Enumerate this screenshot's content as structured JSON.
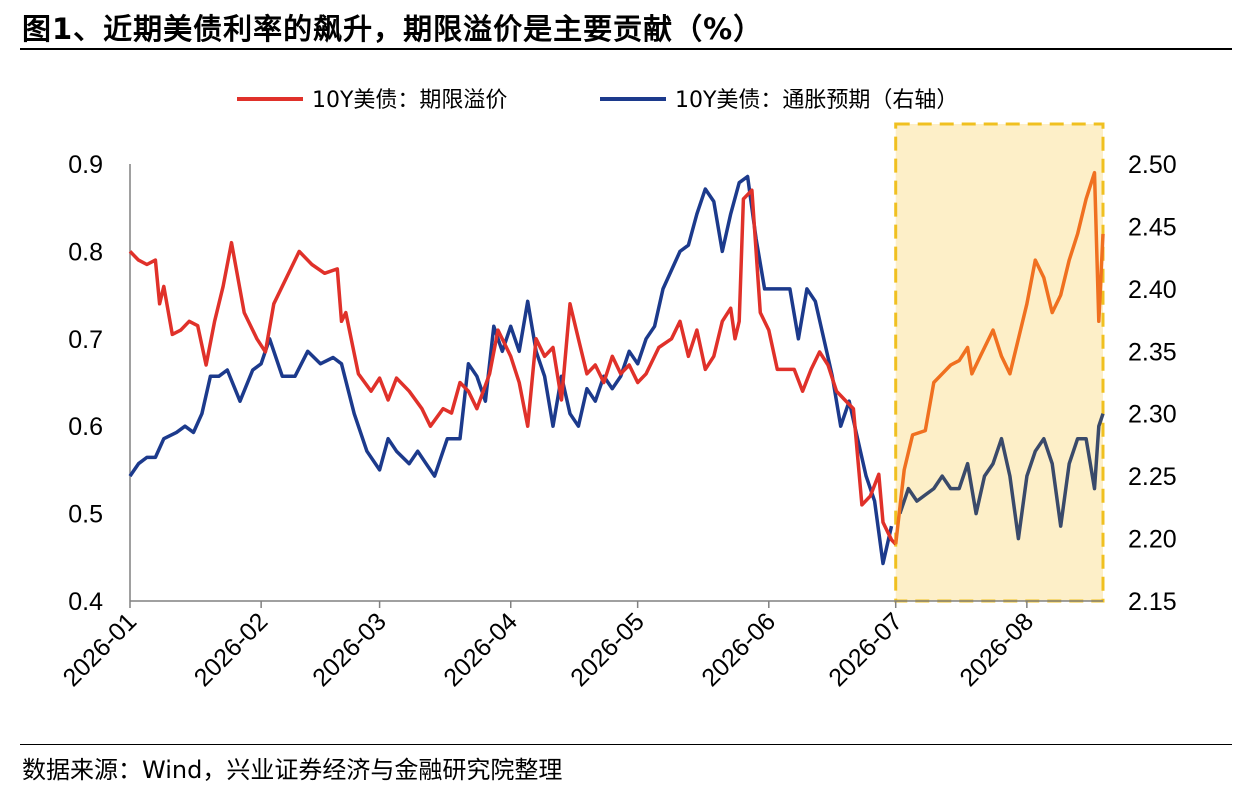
{
  "title": "图1、近期美债利率的飙升，期限溢价是主要贡献（%）",
  "source": "数据来源：Wind，兴业证券经济与金融研究院整理",
  "colors": {
    "series_left": "#e0312a",
    "series_right": "#1c3a8c",
    "series_right_highlight": "#3a4a6a",
    "series_left_highlight": "#f07020",
    "highlight_fill": "#fdefc8",
    "highlight_border": "#f0c020"
  },
  "chart_data": {
    "type": "line",
    "title": "图1、近期美债利率的飙升，期限溢价是主要贡献（%）",
    "x_labels": [
      "2026-01",
      "2026-02",
      "2026-03",
      "2026-04",
      "2026-05",
      "2026-06",
      "2026-07",
      "2026-08"
    ],
    "y_left": {
      "min": 0.4,
      "max": 0.9,
      "ticks": [
        "0.9",
        "0.8",
        "0.7",
        "0.6",
        "0.5",
        "0.4"
      ]
    },
    "y_right": {
      "min": 2.15,
      "max": 2.5,
      "ticks": [
        "2.50",
        "2.45",
        "2.40",
        "2.35",
        "2.30",
        "2.25",
        "2.20",
        "2.15"
      ]
    },
    "highlight_period": {
      "start": "2026-07-01",
      "end": "2026-08-19"
    },
    "legend_position": "top",
    "series": [
      {
        "name": "10Y美债：期限溢价",
        "axis": "left",
        "points": [
          [
            "2026-01-01",
            0.8
          ],
          [
            "2026-01-03",
            0.79
          ],
          [
            "2026-01-05",
            0.785
          ],
          [
            "2026-01-07",
            0.79
          ],
          [
            "2026-01-08",
            0.74
          ],
          [
            "2026-01-09",
            0.76
          ],
          [
            "2026-01-11",
            0.705
          ],
          [
            "2026-01-13",
            0.71
          ],
          [
            "2026-01-15",
            0.72
          ],
          [
            "2026-01-17",
            0.715
          ],
          [
            "2026-01-19",
            0.67
          ],
          [
            "2026-01-21",
            0.72
          ],
          [
            "2026-01-23",
            0.76
          ],
          [
            "2026-01-25",
            0.81
          ],
          [
            "2026-01-28",
            0.73
          ],
          [
            "2026-01-31",
            0.7
          ],
          [
            "2026-02-02",
            0.685
          ],
          [
            "2026-02-04",
            0.74
          ],
          [
            "2026-02-07",
            0.77
          ],
          [
            "2026-02-10",
            0.8
          ],
          [
            "2026-02-13",
            0.785
          ],
          [
            "2026-02-16",
            0.775
          ],
          [
            "2026-02-19",
            0.78
          ],
          [
            "2026-02-20",
            0.72
          ],
          [
            "2026-02-21",
            0.73
          ],
          [
            "2026-02-24",
            0.66
          ],
          [
            "2026-02-27",
            0.64
          ],
          [
            "2026-03-01",
            0.655
          ],
          [
            "2026-03-03",
            0.63
          ],
          [
            "2026-03-05",
            0.655
          ],
          [
            "2026-03-08",
            0.64
          ],
          [
            "2026-03-11",
            0.62
          ],
          [
            "2026-03-13",
            0.6
          ],
          [
            "2026-03-16",
            0.62
          ],
          [
            "2026-03-18",
            0.615
          ],
          [
            "2026-03-20",
            0.65
          ],
          [
            "2026-03-22",
            0.64
          ],
          [
            "2026-03-24",
            0.62
          ],
          [
            "2026-03-27",
            0.66
          ],
          [
            "2026-03-29",
            0.71
          ],
          [
            "2026-04-01",
            0.68
          ],
          [
            "2026-04-03",
            0.65
          ],
          [
            "2026-04-05",
            0.6
          ],
          [
            "2026-04-07",
            0.7
          ],
          [
            "2026-04-09",
            0.68
          ],
          [
            "2026-04-11",
            0.69
          ],
          [
            "2026-04-13",
            0.63
          ],
          [
            "2026-04-15",
            0.74
          ],
          [
            "2026-04-17",
            0.7
          ],
          [
            "2026-04-19",
            0.66
          ],
          [
            "2026-04-21",
            0.67
          ],
          [
            "2026-04-23",
            0.65
          ],
          [
            "2026-04-25",
            0.68
          ],
          [
            "2026-04-27",
            0.66
          ],
          [
            "2026-04-29",
            0.67
          ],
          [
            "2026-05-01",
            0.65
          ],
          [
            "2026-05-03",
            0.66
          ],
          [
            "2026-05-06",
            0.69
          ],
          [
            "2026-05-09",
            0.7
          ],
          [
            "2026-05-11",
            0.72
          ],
          [
            "2026-05-13",
            0.68
          ],
          [
            "2026-05-15",
            0.71
          ],
          [
            "2026-05-17",
            0.665
          ],
          [
            "2026-05-19",
            0.68
          ],
          [
            "2026-05-21",
            0.72
          ],
          [
            "2026-05-23",
            0.735
          ],
          [
            "2026-05-24",
            0.7
          ],
          [
            "2026-05-25",
            0.72
          ],
          [
            "2026-05-26",
            0.86
          ],
          [
            "2026-05-28",
            0.87
          ],
          [
            "2026-05-30",
            0.73
          ],
          [
            "2026-06-01",
            0.71
          ],
          [
            "2026-06-03",
            0.665
          ],
          [
            "2026-06-05",
            0.665
          ],
          [
            "2026-06-07",
            0.665
          ],
          [
            "2026-06-09",
            0.64
          ],
          [
            "2026-06-11",
            0.665
          ],
          [
            "2026-06-13",
            0.685
          ],
          [
            "2026-06-15",
            0.67
          ],
          [
            "2026-06-17",
            0.64
          ],
          [
            "2026-06-19",
            0.63
          ],
          [
            "2026-06-21",
            0.62
          ],
          [
            "2026-06-23",
            0.51
          ],
          [
            "2026-06-25",
            0.52
          ],
          [
            "2026-06-27",
            0.545
          ],
          [
            "2026-06-28",
            0.49
          ],
          [
            "2026-06-30",
            0.47
          ],
          [
            "2026-07-01",
            0.465
          ],
          [
            "2026-07-03",
            0.55
          ],
          [
            "2026-07-05",
            0.59
          ],
          [
            "2026-07-08",
            0.595
          ],
          [
            "2026-07-10",
            0.65
          ],
          [
            "2026-07-12",
            0.66
          ],
          [
            "2026-07-14",
            0.67
          ],
          [
            "2026-07-16",
            0.675
          ],
          [
            "2026-07-18",
            0.69
          ],
          [
            "2026-07-19",
            0.66
          ],
          [
            "2026-07-21",
            0.68
          ],
          [
            "2026-07-24",
            0.71
          ],
          [
            "2026-07-26",
            0.68
          ],
          [
            "2026-07-28",
            0.66
          ],
          [
            "2026-07-30",
            0.7
          ],
          [
            "2026-08-01",
            0.74
          ],
          [
            "2026-08-03",
            0.79
          ],
          [
            "2026-08-05",
            0.77
          ],
          [
            "2026-08-07",
            0.73
          ],
          [
            "2026-08-09",
            0.75
          ],
          [
            "2026-08-11",
            0.79
          ],
          [
            "2026-08-13",
            0.82
          ],
          [
            "2026-08-15",
            0.86
          ],
          [
            "2026-08-17",
            0.89
          ],
          [
            "2026-08-18",
            0.72
          ],
          [
            "2026-08-19",
            0.82
          ]
        ]
      },
      {
        "name": "10Y美债：通胀预期（右轴）",
        "axis": "right",
        "points": [
          [
            "2026-01-01",
            2.25
          ],
          [
            "2026-01-03",
            2.26
          ],
          [
            "2026-01-05",
            2.265
          ],
          [
            "2026-01-07",
            2.265
          ],
          [
            "2026-01-09",
            2.28
          ],
          [
            "2026-01-12",
            2.285
          ],
          [
            "2026-01-14",
            2.29
          ],
          [
            "2026-01-16",
            2.285
          ],
          [
            "2026-01-18",
            2.3
          ],
          [
            "2026-01-20",
            2.33
          ],
          [
            "2026-01-22",
            2.33
          ],
          [
            "2026-01-24",
            2.335
          ],
          [
            "2026-01-27",
            2.31
          ],
          [
            "2026-01-30",
            2.335
          ],
          [
            "2026-02-01",
            2.34
          ],
          [
            "2026-02-03",
            2.36
          ],
          [
            "2026-02-06",
            2.33
          ],
          [
            "2026-02-09",
            2.33
          ],
          [
            "2026-02-12",
            2.35
          ],
          [
            "2026-02-15",
            2.34
          ],
          [
            "2026-02-18",
            2.345
          ],
          [
            "2026-02-20",
            2.34
          ],
          [
            "2026-02-23",
            2.3
          ],
          [
            "2026-02-26",
            2.27
          ],
          [
            "2026-03-01",
            2.255
          ],
          [
            "2026-03-03",
            2.28
          ],
          [
            "2026-03-05",
            2.27
          ],
          [
            "2026-03-08",
            2.26
          ],
          [
            "2026-03-10",
            2.27
          ],
          [
            "2026-03-12",
            2.26
          ],
          [
            "2026-03-14",
            2.25
          ],
          [
            "2026-03-17",
            2.28
          ],
          [
            "2026-03-20",
            2.28
          ],
          [
            "2026-03-22",
            2.34
          ],
          [
            "2026-03-24",
            2.33
          ],
          [
            "2026-03-26",
            2.31
          ],
          [
            "2026-03-28",
            2.37
          ],
          [
            "2026-03-30",
            2.35
          ],
          [
            "2026-04-01",
            2.37
          ],
          [
            "2026-04-03",
            2.35
          ],
          [
            "2026-04-05",
            2.39
          ],
          [
            "2026-04-07",
            2.35
          ],
          [
            "2026-04-09",
            2.33
          ],
          [
            "2026-04-11",
            2.29
          ],
          [
            "2026-04-13",
            2.33
          ],
          [
            "2026-04-15",
            2.3
          ],
          [
            "2026-04-17",
            2.29
          ],
          [
            "2026-04-19",
            2.32
          ],
          [
            "2026-04-21",
            2.31
          ],
          [
            "2026-04-23",
            2.33
          ],
          [
            "2026-04-25",
            2.32
          ],
          [
            "2026-04-27",
            2.33
          ],
          [
            "2026-04-29",
            2.35
          ],
          [
            "2026-05-01",
            2.34
          ],
          [
            "2026-05-03",
            2.36
          ],
          [
            "2026-05-05",
            2.37
          ],
          [
            "2026-05-07",
            2.4
          ],
          [
            "2026-05-09",
            2.415
          ],
          [
            "2026-05-11",
            2.43
          ],
          [
            "2026-05-13",
            2.435
          ],
          [
            "2026-05-15",
            2.46
          ],
          [
            "2026-05-17",
            2.48
          ],
          [
            "2026-05-19",
            2.47
          ],
          [
            "2026-05-21",
            2.43
          ],
          [
            "2026-05-23",
            2.46
          ],
          [
            "2026-05-25",
            2.485
          ],
          [
            "2026-05-27",
            2.49
          ],
          [
            "2026-05-29",
            2.44
          ],
          [
            "2026-05-31",
            2.4
          ],
          [
            "2026-06-02",
            2.4
          ],
          [
            "2026-06-04",
            2.4
          ],
          [
            "2026-06-06",
            2.4
          ],
          [
            "2026-06-08",
            2.36
          ],
          [
            "2026-06-10",
            2.4
          ],
          [
            "2026-06-12",
            2.39
          ],
          [
            "2026-06-14",
            2.36
          ],
          [
            "2026-06-16",
            2.33
          ],
          [
            "2026-06-18",
            2.29
          ],
          [
            "2026-06-20",
            2.31
          ],
          [
            "2026-06-22",
            2.28
          ],
          [
            "2026-06-24",
            2.25
          ],
          [
            "2026-06-26",
            2.23
          ],
          [
            "2026-06-28",
            2.18
          ],
          [
            "2026-06-30",
            2.21
          ],
          [
            "2026-07-02",
            2.22
          ],
          [
            "2026-07-04",
            2.24
          ],
          [
            "2026-07-06",
            2.23
          ],
          [
            "2026-07-08",
            2.235
          ],
          [
            "2026-07-10",
            2.24
          ],
          [
            "2026-07-12",
            2.25
          ],
          [
            "2026-07-14",
            2.24
          ],
          [
            "2026-07-16",
            2.24
          ],
          [
            "2026-07-18",
            2.26
          ],
          [
            "2026-07-20",
            2.22
          ],
          [
            "2026-07-22",
            2.25
          ],
          [
            "2026-07-24",
            2.26
          ],
          [
            "2026-07-26",
            2.28
          ],
          [
            "2026-07-28",
            2.25
          ],
          [
            "2026-07-30",
            2.2
          ],
          [
            "2026-08-01",
            2.25
          ],
          [
            "2026-08-03",
            2.27
          ],
          [
            "2026-08-05",
            2.28
          ],
          [
            "2026-08-07",
            2.26
          ],
          [
            "2026-08-09",
            2.21
          ],
          [
            "2026-08-11",
            2.26
          ],
          [
            "2026-08-13",
            2.28
          ],
          [
            "2026-08-15",
            2.28
          ],
          [
            "2026-08-17",
            2.24
          ],
          [
            "2026-08-18",
            2.29
          ],
          [
            "2026-08-19",
            2.3
          ]
        ]
      }
    ]
  }
}
